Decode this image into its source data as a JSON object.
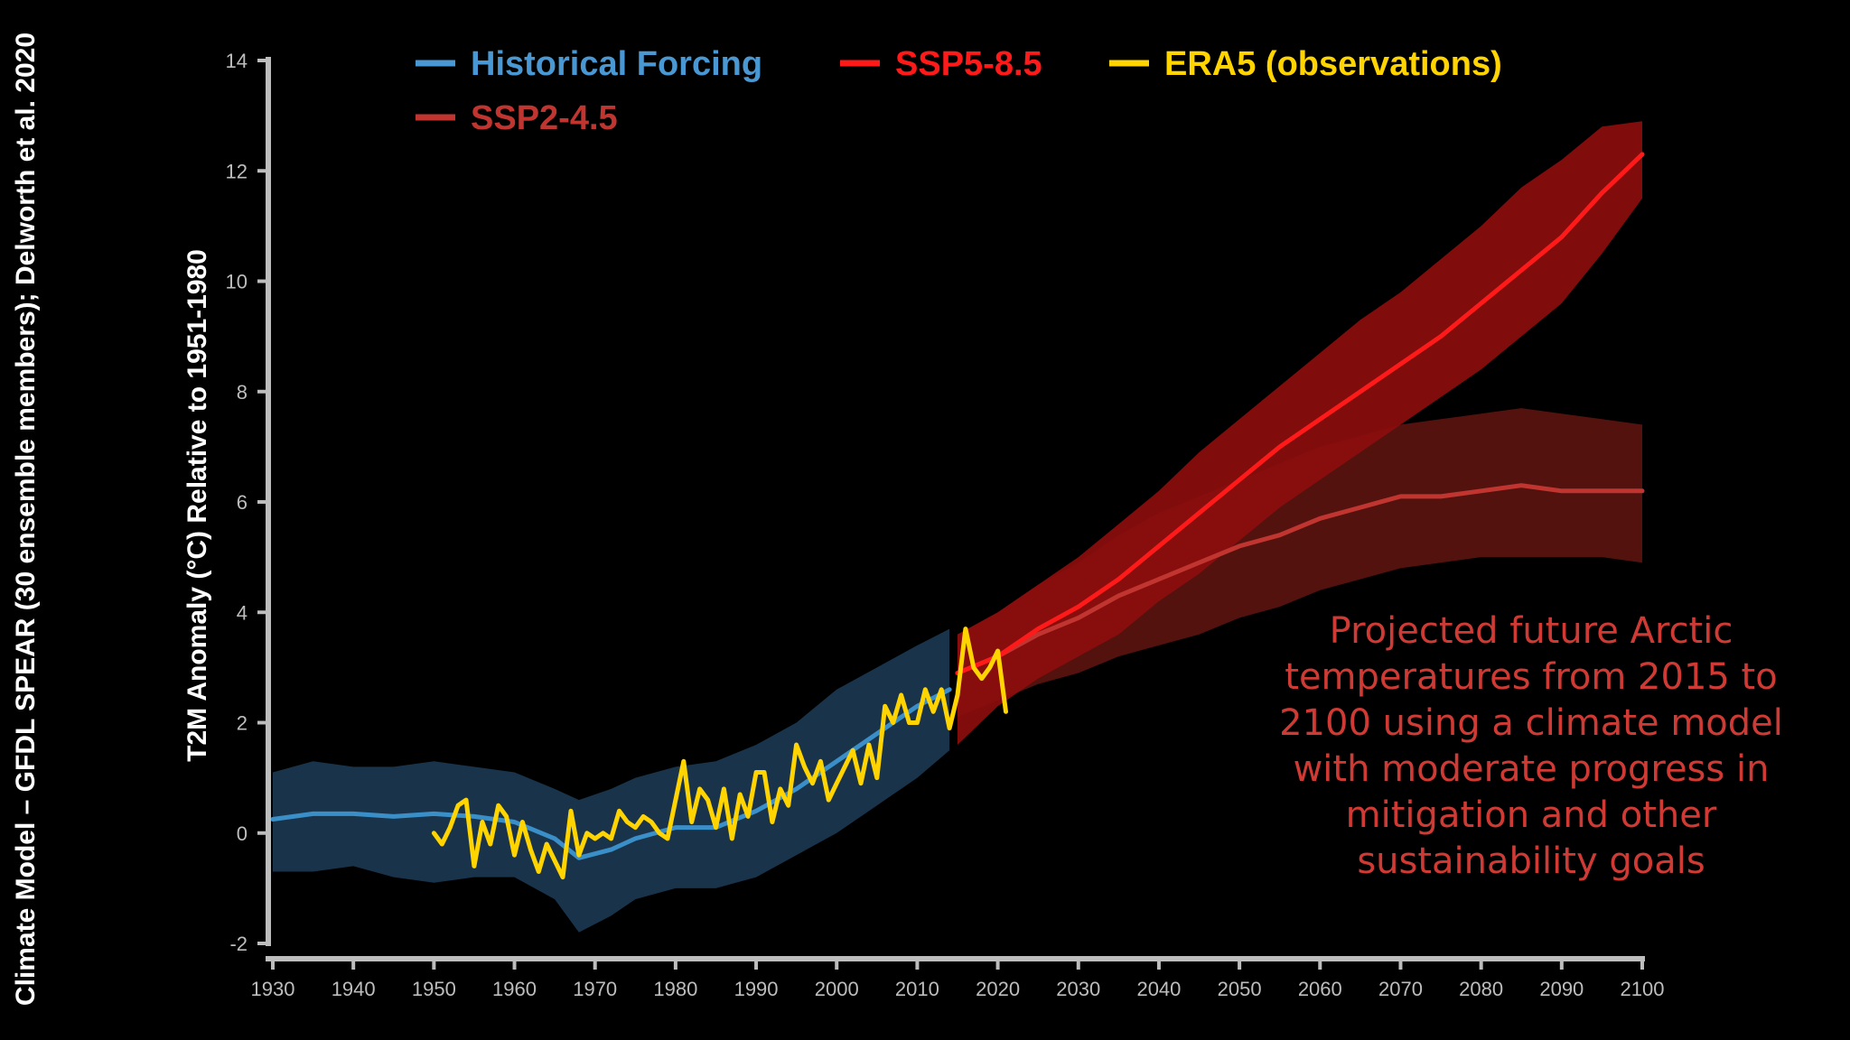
{
  "chart_data": {
    "type": "line",
    "ylabel": "T2M Anomaly (°C) Relative to 1951-1980",
    "source": "Climate Model – GFDL SPEAR (30 ensemble members); Delworth et al. 2020",
    "annotation": [
      "Projected future Arctic",
      "temperatures from 2015 to",
      "2100 using a climate model",
      "with moderate progress in",
      "mitigation and other",
      "sustainability goals"
    ],
    "xlim": [
      1930,
      2100
    ],
    "ylim": [
      -2,
      14
    ],
    "xticks": [
      1930,
      1940,
      1950,
      1960,
      1970,
      1980,
      1990,
      2000,
      2010,
      2020,
      2030,
      2040,
      2050,
      2060,
      2070,
      2080,
      2090,
      2100
    ],
    "yticks": [
      -2,
      0,
      2,
      4,
      6,
      8,
      10,
      12,
      14
    ],
    "grid": false,
    "legend_position": "top",
    "series": [
      {
        "name": "Historical Forcing",
        "color": "#3a8fc9",
        "band_color": "#1c3a52",
        "x": [
          1930,
          1935,
          1940,
          1945,
          1950,
          1955,
          1960,
          1965,
          1968,
          1972,
          1975,
          1980,
          1985,
          1990,
          1995,
          2000,
          2005,
          2010,
          2014
        ],
        "y": [
          0.25,
          0.35,
          0.35,
          0.3,
          0.35,
          0.3,
          0.2,
          -0.1,
          -0.45,
          -0.3,
          -0.1,
          0.1,
          0.1,
          0.4,
          0.8,
          1.3,
          1.8,
          2.3,
          2.6
        ],
        "upper": [
          1.1,
          1.3,
          1.2,
          1.2,
          1.3,
          1.2,
          1.1,
          0.8,
          0.6,
          0.8,
          1.0,
          1.2,
          1.3,
          1.6,
          2.0,
          2.6,
          3.0,
          3.4,
          3.7
        ],
        "lower": [
          -0.7,
          -0.7,
          -0.6,
          -0.8,
          -0.9,
          -0.8,
          -0.8,
          -1.2,
          -1.8,
          -1.5,
          -1.2,
          -1.0,
          -1.0,
          -0.8,
          -0.4,
          0.0,
          0.5,
          1.0,
          1.5
        ]
      },
      {
        "name": "SSP2-4.5",
        "color": "#c03530",
        "band_color": "#5c1410",
        "x": [
          2015,
          2020,
          2025,
          2030,
          2035,
          2040,
          2045,
          2050,
          2055,
          2060,
          2065,
          2070,
          2075,
          2080,
          2085,
          2090,
          2095,
          2100
        ],
        "y": [
          2.9,
          3.2,
          3.6,
          3.9,
          4.3,
          4.6,
          4.9,
          5.2,
          5.4,
          5.7,
          5.9,
          6.1,
          6.1,
          6.2,
          6.3,
          6.2,
          6.2,
          6.2
        ],
        "upper": [
          3.6,
          4.0,
          4.5,
          4.9,
          5.4,
          5.8,
          6.1,
          6.4,
          6.7,
          7.0,
          7.2,
          7.4,
          7.5,
          7.6,
          7.7,
          7.6,
          7.5,
          7.4
        ],
        "lower": [
          2.1,
          2.4,
          2.7,
          2.9,
          3.2,
          3.4,
          3.6,
          3.9,
          4.1,
          4.4,
          4.6,
          4.8,
          4.9,
          5.0,
          5.0,
          5.0,
          5.0,
          4.9
        ]
      },
      {
        "name": "SSP5-8.5",
        "color": "#ff1a1a",
        "band_color": "#8e0d0d",
        "x": [
          2015,
          2020,
          2025,
          2030,
          2035,
          2040,
          2045,
          2050,
          2055,
          2060,
          2065,
          2070,
          2075,
          2080,
          2085,
          2090,
          2095,
          2100
        ],
        "y": [
          2.9,
          3.2,
          3.7,
          4.1,
          4.6,
          5.2,
          5.8,
          6.4,
          7.0,
          7.5,
          8.0,
          8.5,
          9.0,
          9.6,
          10.2,
          10.8,
          11.6,
          12.3
        ],
        "upper": [
          3.6,
          4.0,
          4.5,
          5.0,
          5.6,
          6.2,
          6.9,
          7.5,
          8.1,
          8.7,
          9.3,
          9.8,
          10.4,
          11.0,
          11.7,
          12.2,
          12.8,
          12.9
        ],
        "lower": [
          1.6,
          2.3,
          2.8,
          3.2,
          3.6,
          4.2,
          4.7,
          5.3,
          5.9,
          6.4,
          6.9,
          7.4,
          7.9,
          8.4,
          9.0,
          9.6,
          10.5,
          11.5
        ]
      },
      {
        "name": "ERA5 (observations)",
        "color": "#ffd400",
        "x": [
          1950,
          1951,
          1952,
          1953,
          1954,
          1955,
          1956,
          1957,
          1958,
          1959,
          1960,
          1961,
          1962,
          1963,
          1964,
          1965,
          1966,
          1967,
          1968,
          1969,
          1970,
          1971,
          1972,
          1973,
          1974,
          1975,
          1976,
          1977,
          1978,
          1979,
          1980,
          1981,
          1982,
          1983,
          1984,
          1985,
          1986,
          1987,
          1988,
          1989,
          1990,
          1991,
          1992,
          1993,
          1994,
          1995,
          1996,
          1997,
          1998,
          1999,
          2000,
          2001,
          2002,
          2003,
          2004,
          2005,
          2006,
          2007,
          2008,
          2009,
          2010,
          2011,
          2012,
          2013,
          2014,
          2015,
          2016,
          2017,
          2018,
          2019,
          2020,
          2021
        ],
        "y": [
          0.0,
          -0.2,
          0.1,
          0.5,
          0.6,
          -0.6,
          0.2,
          -0.2,
          0.5,
          0.3,
          -0.4,
          0.2,
          -0.3,
          -0.7,
          -0.2,
          -0.5,
          -0.8,
          0.4,
          -0.4,
          0.0,
          -0.1,
          0.0,
          -0.1,
          0.4,
          0.2,
          0.1,
          0.3,
          0.2,
          0.0,
          -0.1,
          0.6,
          1.3,
          0.2,
          0.8,
          0.6,
          0.1,
          0.8,
          -0.1,
          0.7,
          0.3,
          1.1,
          1.1,
          0.2,
          0.8,
          0.5,
          1.6,
          1.2,
          0.9,
          1.3,
          0.6,
          0.9,
          1.2,
          1.5,
          0.9,
          1.6,
          1.0,
          2.3,
          2.0,
          2.5,
          2.0,
          2.0,
          2.6,
          2.2,
          2.6,
          1.9,
          2.5,
          3.7,
          3.0,
          2.8,
          3.0,
          3.3,
          2.2
        ]
      }
    ]
  }
}
